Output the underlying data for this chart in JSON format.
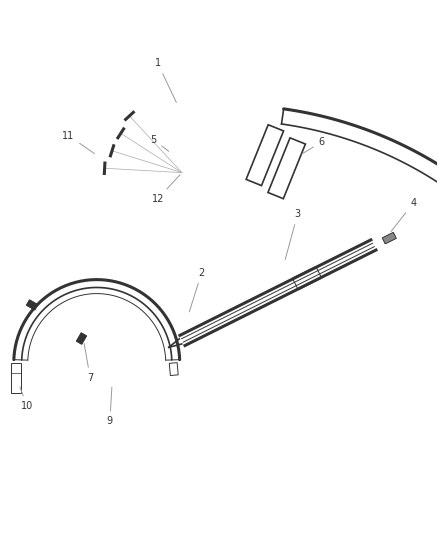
{
  "bg_color": "#ffffff",
  "line_color": "#333333",
  "label_color": "#333333",
  "figsize": [
    4.38,
    5.33
  ],
  "dpi": 100,
  "xlim": [
    0,
    10
  ],
  "ylim": [
    0,
    12
  ]
}
